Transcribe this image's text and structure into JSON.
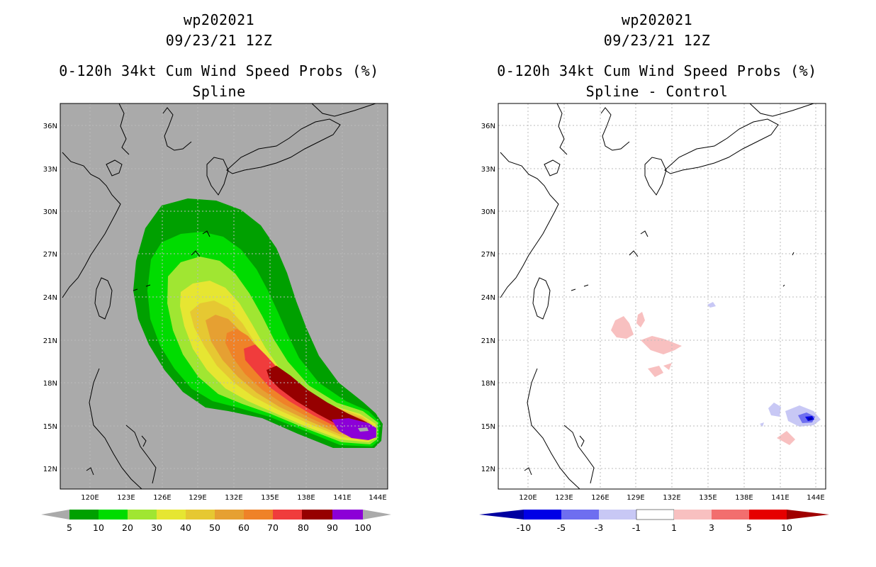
{
  "left": {
    "title_line1": "wp202021",
    "title_line2": "09/23/21 12Z",
    "title_line3": "0-120h 34kt Cum Wind Speed Probs (%)",
    "title_line4": "Spline"
  },
  "right": {
    "title_line1": "wp202021",
    "title_line2": "09/23/21 12Z",
    "title_line3": "0-120h 34kt Cum Wind Speed Probs (%)",
    "title_line4": "Spline - Control"
  },
  "map": {
    "lat_labels": [
      "36N",
      "33N",
      "30N",
      "27N",
      "24N",
      "21N",
      "18N",
      "15N",
      "12N"
    ],
    "lon_labels": [
      "120E",
      "123E",
      "126E",
      "129E",
      "132E",
      "135E",
      "138E",
      "141E",
      "144E"
    ]
  },
  "colors": {
    "land_ocean_gray": "#aaaaaa",
    "coast": "#000000",
    "grid": "#bbbbbb"
  },
  "legend_left": {
    "labels": [
      "5",
      "10",
      "20",
      "30",
      "40",
      "50",
      "60",
      "70",
      "80",
      "90",
      "100"
    ],
    "colors": [
      "#aaaaaa",
      "#00a000",
      "#00dc00",
      "#a0e632",
      "#e6e632",
      "#e6c832",
      "#e6a032",
      "#ef8228",
      "#f03c3c",
      "#960000",
      "#8c00d7",
      "#aaaaaa"
    ]
  },
  "legend_right": {
    "labels": [
      "-10",
      "-5",
      "-3",
      "-1",
      "1",
      "3",
      "5",
      "10"
    ],
    "colors": [
      "#0000a0",
      "#0000e6",
      "#6e6ef0",
      "#c8c8f5",
      "#ffffff",
      "#f8c0c0",
      "#f26e6e",
      "#e60000",
      "#a00000"
    ]
  }
}
